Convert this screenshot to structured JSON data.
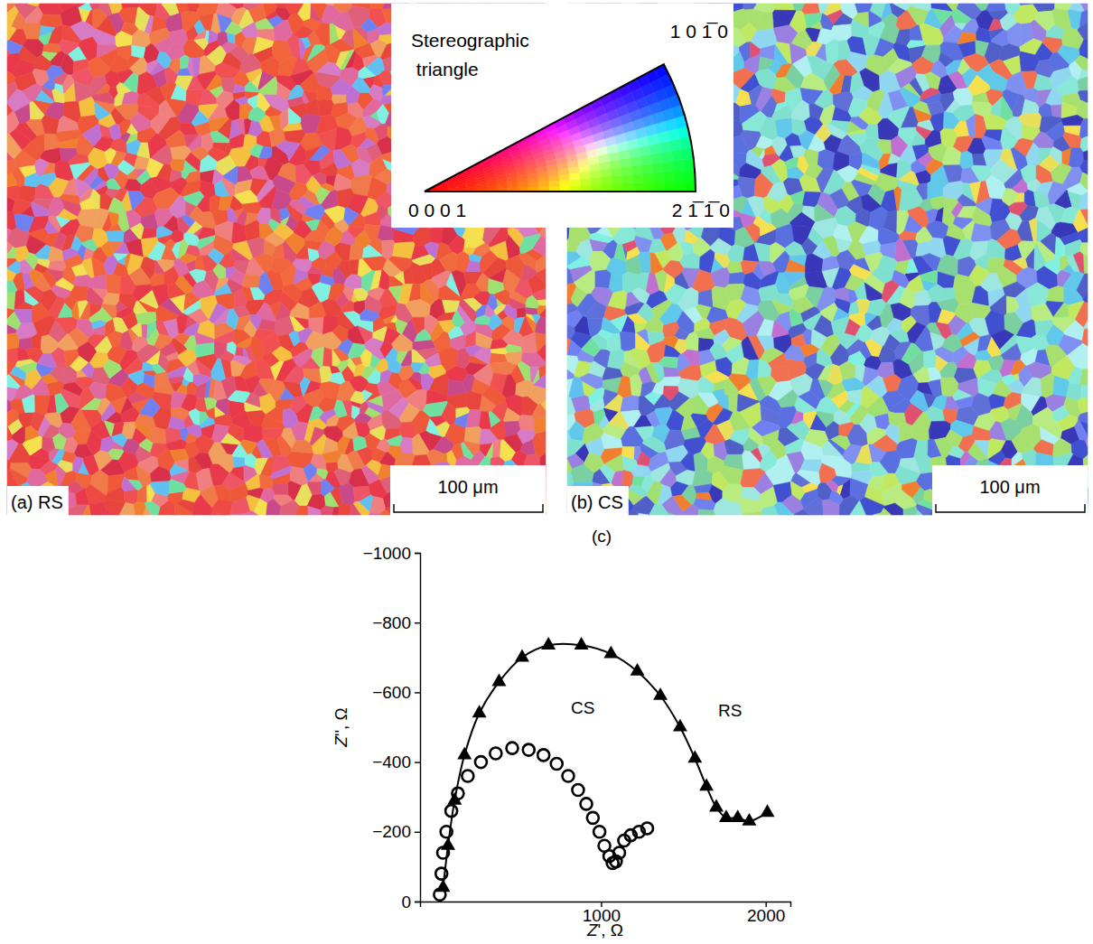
{
  "chart_data": [
    {
      "type": "map",
      "label": "(a) RS",
      "scale_bar": "100 μm"
    },
    {
      "type": "map",
      "label": "(b) CS",
      "scale_bar": "100 μm"
    },
    {
      "type": "color_key",
      "title": "Stereographic triangle",
      "corners": [
        "0 0 0 1",
        "2 1̅ 1̅ 0",
        "1 0 1̅ 0"
      ]
    },
    {
      "type": "scatter",
      "title": "(c)",
      "x_label": "Z', Ω",
      "y_label": "Z'', Ω",
      "xlim": [
        -100,
        2150
      ],
      "ylim": [
        0,
        -1000
      ],
      "xticks": [
        1000,
        2000
      ],
      "yticks": [
        {
          "value": -1000,
          "label": "−1000"
        },
        {
          "value": -800,
          "label": "−800"
        },
        {
          "value": -600,
          "label": "−600"
        },
        {
          "value": -400,
          "label": "−400"
        },
        {
          "value": -200,
          "label": "−200"
        },
        0
      ],
      "series": [
        {
          "name": "CS",
          "marker": "circle",
          "line_style": "none",
          "x": [
            20,
            30,
            40,
            60,
            90,
            130,
            190,
            270,
            360,
            460,
            560,
            650,
            730,
            800,
            860,
            910,
            950,
            990,
            1020,
            1050,
            1070,
            1090,
            1110,
            1140,
            1180,
            1230,
            1280
          ],
          "values": [
            -20,
            -80,
            -140,
            -200,
            -260,
            -310,
            -360,
            -400,
            -425,
            -440,
            -435,
            -420,
            -395,
            -360,
            -320,
            -280,
            -240,
            -200,
            -160,
            -130,
            -110,
            -115,
            -140,
            -175,
            -190,
            -200,
            -210
          ]
        },
        {
          "name": "RS",
          "marker": "triangle",
          "line_style": "solid",
          "x": [
            40,
            70,
            110,
            170,
            260,
            380,
            520,
            680,
            880,
            1060,
            1220,
            1360,
            1480,
            1570,
            1640,
            1700,
            1760,
            1830,
            1900,
            2010
          ],
          "values": [
            -40,
            -160,
            -290,
            -420,
            -540,
            -630,
            -700,
            -735,
            -735,
            -710,
            -660,
            -590,
            -500,
            -410,
            -330,
            -270,
            -240,
            -240,
            -230,
            -255
          ]
        }
      ]
    }
  ]
}
